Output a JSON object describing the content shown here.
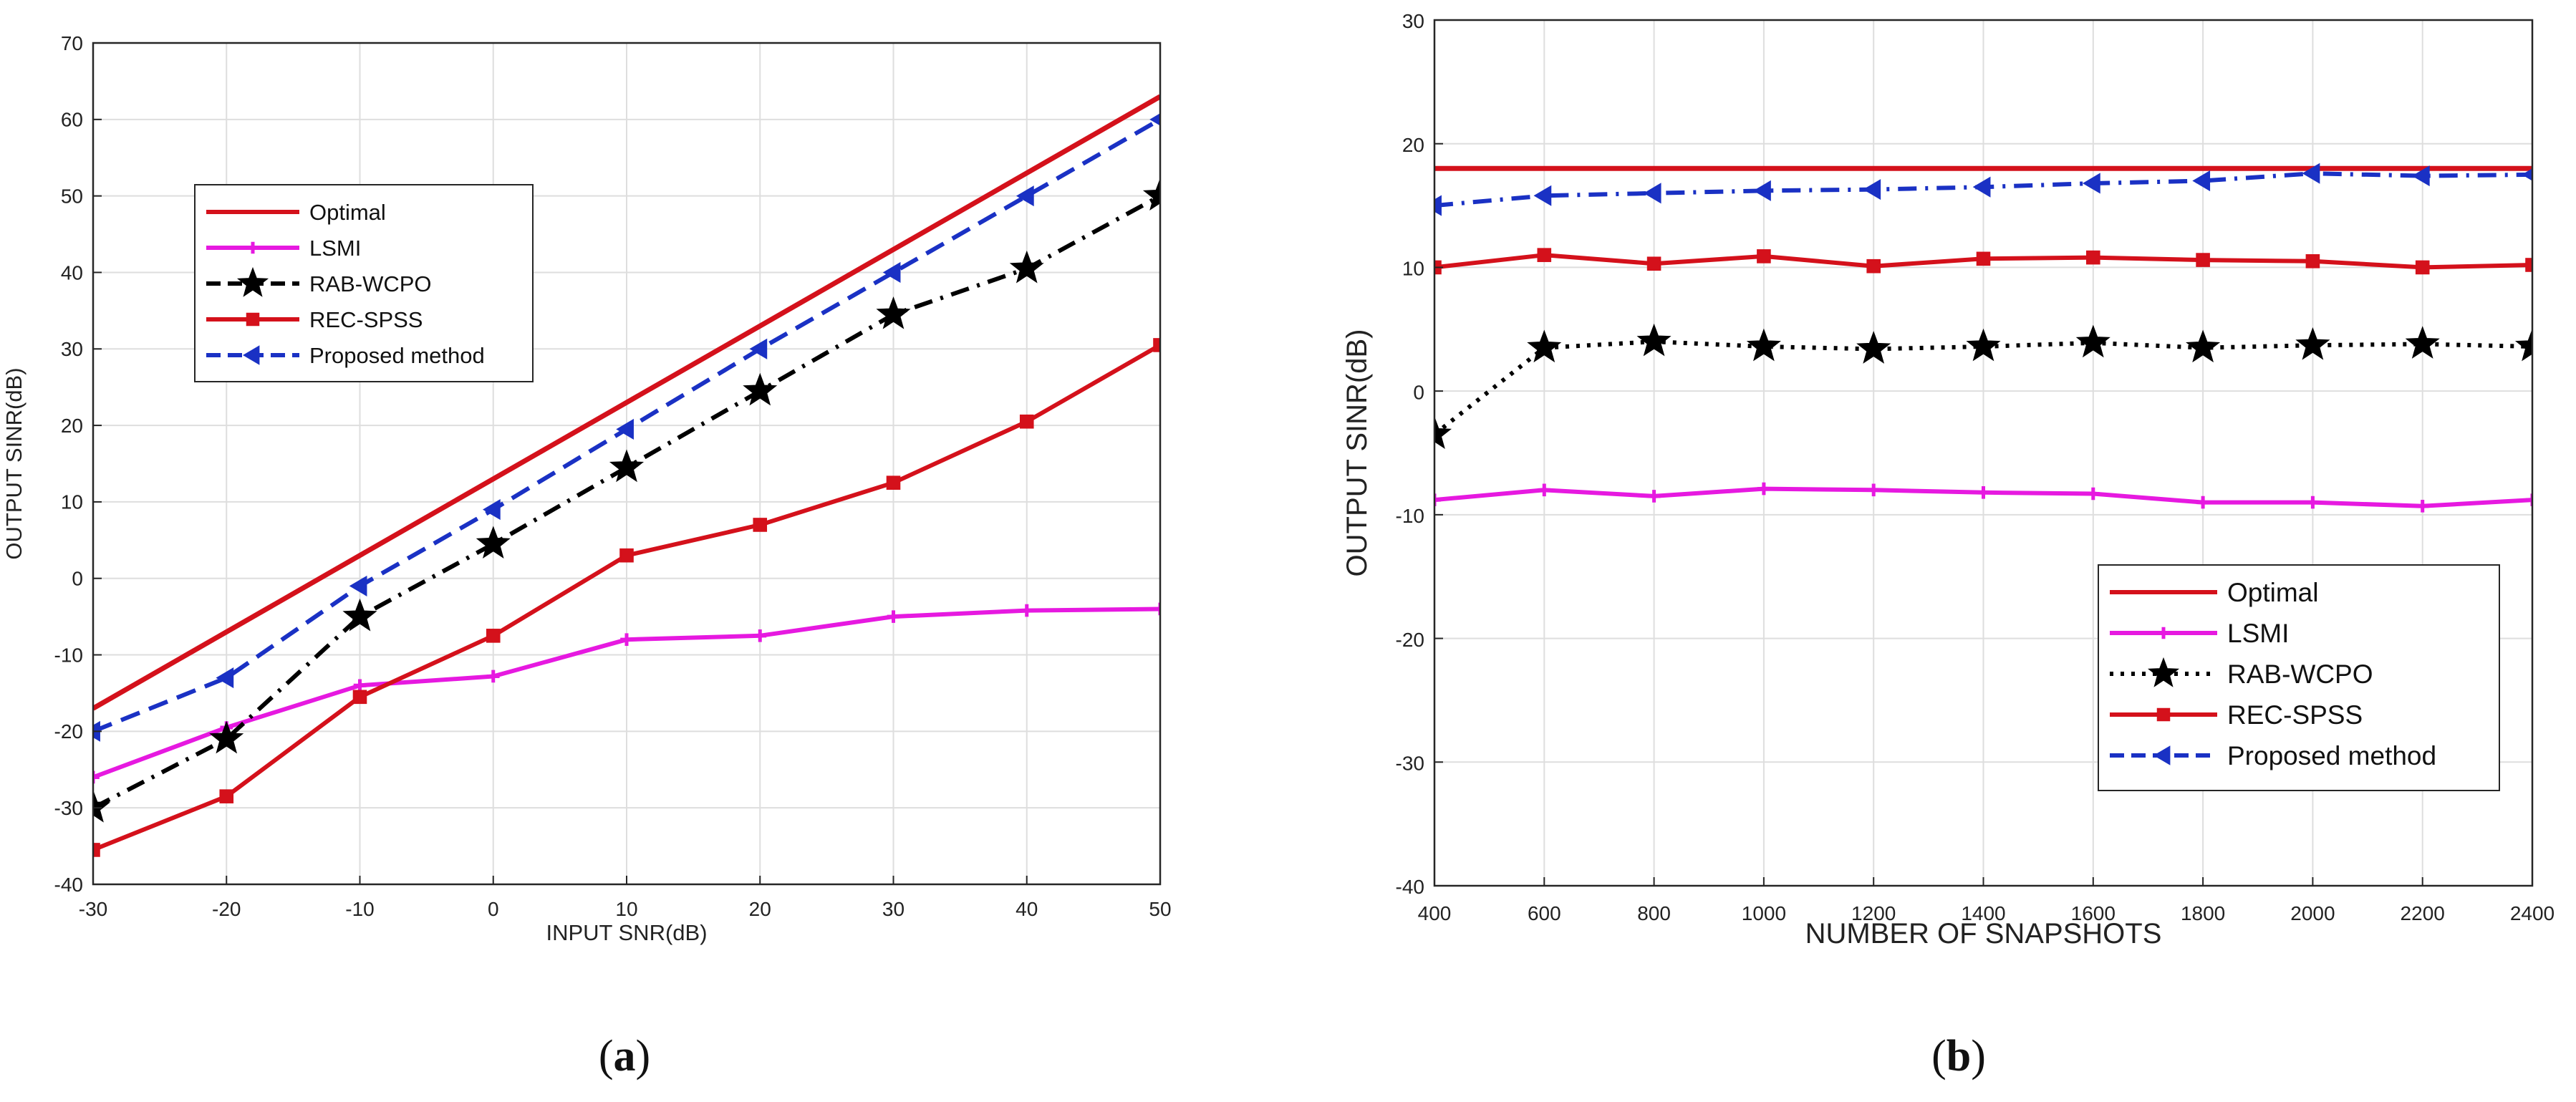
{
  "chart_data": [
    {
      "type": "line",
      "caption": "(a)",
      "xlabel": "INPUT SNR(dB)",
      "ylabel": "OUTPUT SINR(dB)",
      "xlim": [
        -30,
        50
      ],
      "ylim": [
        -40,
        70
      ],
      "xticks": [
        -30,
        -20,
        -10,
        0,
        10,
        20,
        30,
        40,
        50
      ],
      "yticks": [
        -40,
        -30,
        -20,
        -10,
        0,
        10,
        20,
        30,
        40,
        50,
        60,
        70
      ],
      "legend_position": "upper-left",
      "series": [
        {
          "name": "Optimal",
          "color": "#d4111b",
          "dash": "solid",
          "marker": "none",
          "x": [
            -30,
            50
          ],
          "y": [
            -17,
            63
          ]
        },
        {
          "name": "LSMI",
          "color": "#e619e0",
          "dash": "solid",
          "marker": "plus",
          "x": [
            -30,
            -20,
            -10,
            0,
            10,
            20,
            30,
            40,
            50
          ],
          "y": [
            -26,
            -19.5,
            -14,
            -12.8,
            -8,
            -7.5,
            -5,
            -4.2,
            -4
          ]
        },
        {
          "name": "RAB-WCPO",
          "color": "#000000",
          "dash": "dashdot",
          "marker": "star",
          "x": [
            -30,
            -20,
            -10,
            0,
            10,
            20,
            30,
            40,
            50
          ],
          "y": [
            -30,
            -21,
            -5,
            4.5,
            14.5,
            24.5,
            34.5,
            40.5,
            50
          ]
        },
        {
          "name": "REC-SPSS",
          "color": "#d4111b",
          "dash": "solid",
          "marker": "square",
          "x": [
            -30,
            -20,
            -10,
            0,
            10,
            20,
            30,
            40,
            50
          ],
          "y": [
            -35.5,
            -28.5,
            -15.5,
            -7.5,
            3,
            7,
            12.5,
            20.5,
            30.5
          ]
        },
        {
          "name": "Proposed method",
          "color": "#1a31c4",
          "dash": "dash",
          "marker": "triangle-left",
          "x": [
            -30,
            -20,
            -10,
            0,
            10,
            20,
            30,
            40,
            50
          ],
          "y": [
            -20,
            -13,
            -1,
            9,
            19.5,
            30,
            40,
            50,
            60
          ]
        }
      ]
    },
    {
      "type": "line",
      "caption": "(b)",
      "xlabel": "NUMBER OF SNAPSHOTS",
      "ylabel": "OUTPUT SINR(dB)",
      "xlim": [
        400,
        2400
      ],
      "ylim": [
        -40,
        30
      ],
      "xticks": [
        400,
        600,
        800,
        1000,
        1200,
        1400,
        1600,
        1800,
        2000,
        2200,
        2400
      ],
      "yticks": [
        -40,
        -30,
        -20,
        -10,
        0,
        10,
        20,
        30
      ],
      "legend_position": "lower-right",
      "series": [
        {
          "name": "Optimal",
          "color": "#d4111b",
          "dash": "solid",
          "marker": "none",
          "x": [
            400,
            2400
          ],
          "y": [
            18,
            18
          ]
        },
        {
          "name": "LSMI",
          "color": "#e619e0",
          "dash": "solid",
          "marker": "plus",
          "x": [
            400,
            600,
            800,
            1000,
            1200,
            1400,
            1600,
            1800,
            2000,
            2200,
            2400
          ],
          "y": [
            -8.8,
            -8,
            -8.5,
            -7.9,
            -8,
            -8.2,
            -8.3,
            -9,
            -9,
            -9.3,
            -8.8
          ]
        },
        {
          "name": "RAB-WCPO",
          "color": "#000000",
          "dash": "dotted",
          "marker": "star",
          "x": [
            400,
            600,
            800,
            1000,
            1200,
            1400,
            1600,
            1800,
            2000,
            2200,
            2400
          ],
          "y": [
            -3.5,
            3.5,
            4,
            3.6,
            3.4,
            3.6,
            3.9,
            3.5,
            3.7,
            3.8,
            3.6
          ]
        },
        {
          "name": "REC-SPSS",
          "color": "#d4111b",
          "dash": "solid",
          "marker": "square",
          "x": [
            400,
            600,
            800,
            1000,
            1200,
            1400,
            1600,
            1800,
            2000,
            2200,
            2400
          ],
          "y": [
            10,
            11,
            10.3,
            10.9,
            10.1,
            10.7,
            10.8,
            10.6,
            10.5,
            10,
            10.2
          ]
        },
        {
          "name": "Proposed method",
          "color": "#1a31c4",
          "dash": "dashdot",
          "marker": "triangle-left",
          "x": [
            400,
            600,
            800,
            1000,
            1200,
            1400,
            1600,
            1800,
            2000,
            2200,
            2400
          ],
          "y": [
            15,
            15.8,
            16,
            16.2,
            16.3,
            16.5,
            16.8,
            17,
            17.6,
            17.4,
            17.5
          ]
        }
      ]
    }
  ]
}
